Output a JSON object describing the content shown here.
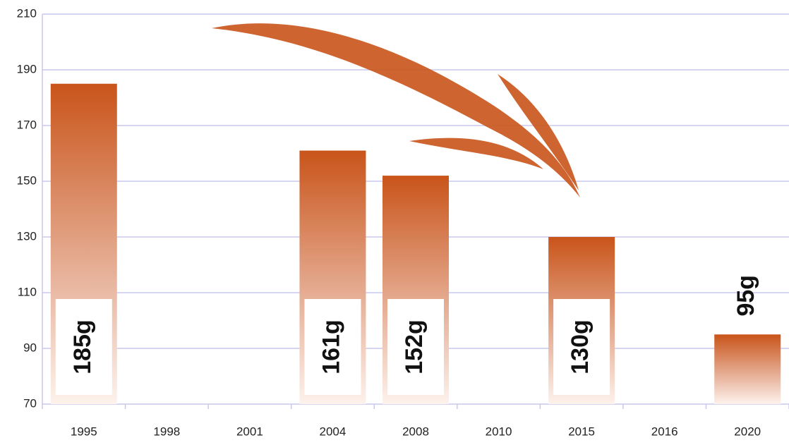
{
  "chart_data": {
    "type": "bar",
    "categories": [
      "1995",
      "1998",
      "2001",
      "2004",
      "2008",
      "2010",
      "2015",
      "2016",
      "2020"
    ],
    "values": [
      185,
      null,
      null,
      161,
      152,
      null,
      130,
      null,
      95
    ],
    "value_labels": [
      "185g",
      null,
      null,
      "161g",
      "152g",
      null,
      "130g",
      null,
      "95g"
    ],
    "color": "#c9541a",
    "ylim": [
      70,
      210
    ],
    "yticks": [
      70,
      90,
      110,
      130,
      150,
      170,
      190,
      210
    ],
    "grid": true
  }
}
